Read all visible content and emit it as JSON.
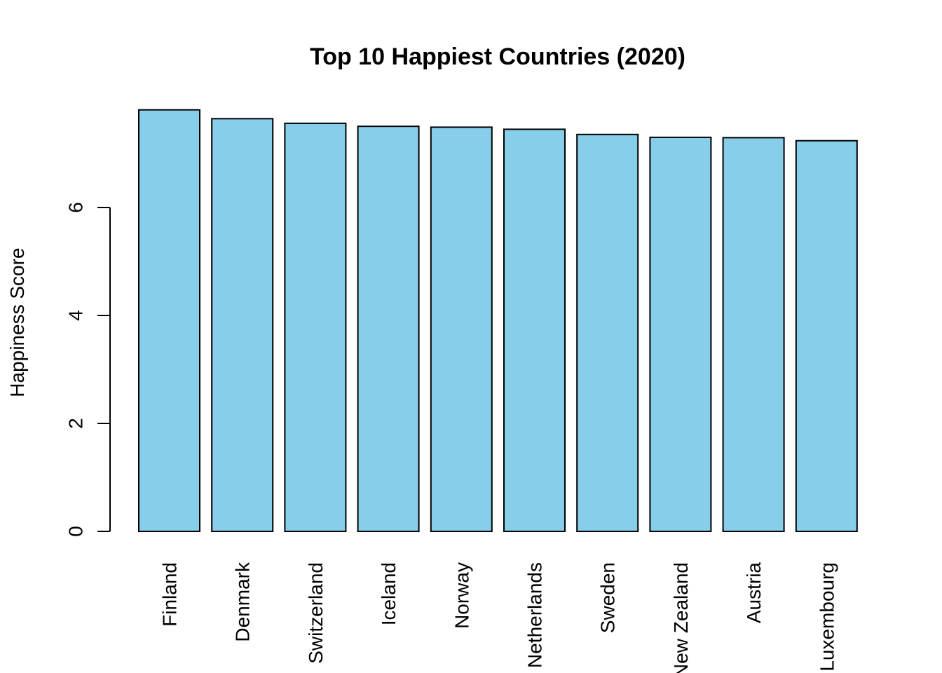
{
  "chart_data": {
    "type": "bar",
    "title": "Top 10 Happiest Countries (2020)",
    "xlabel": "",
    "ylabel": "Happiness Score",
    "categories": [
      "Finland",
      "Denmark",
      "Switzerland",
      "Iceland",
      "Norway",
      "Netherlands",
      "Sweden",
      "New Zealand",
      "Austria",
      "Luxembourg"
    ],
    "values": [
      7.809,
      7.646,
      7.56,
      7.504,
      7.488,
      7.449,
      7.353,
      7.3,
      7.294,
      7.238
    ],
    "yticks": [
      0,
      2,
      4,
      6
    ],
    "ylim": [
      0,
      7.809
    ],
    "grid": false,
    "legend": "none",
    "bar_color": "#87CEEB",
    "border_color": "#000000"
  }
}
